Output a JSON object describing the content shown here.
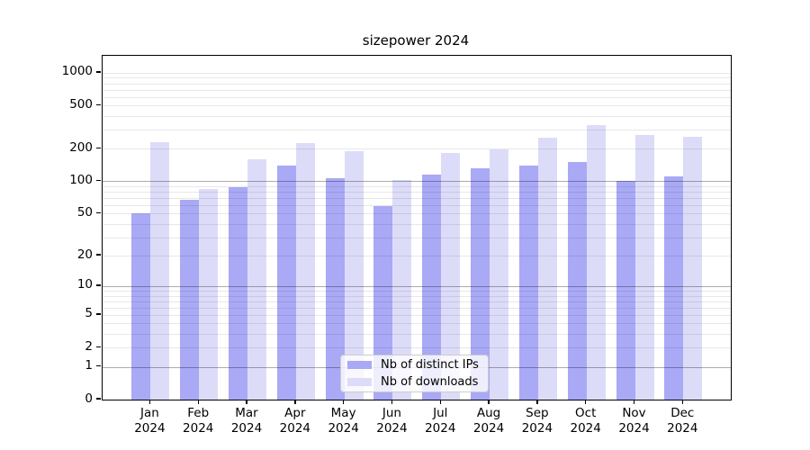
{
  "title": "sizepower 2024",
  "colors": {
    "distinct_ips": "#a9a9f6",
    "downloads": "#dcdcf9"
  },
  "legend": {
    "items": [
      {
        "label": "Nb of distinct IPs",
        "color_key": "distinct_ips"
      },
      {
        "label": "Nb of downloads",
        "color_key": "downloads"
      }
    ]
  },
  "chart_data": {
    "type": "bar",
    "title": "sizepower 2024",
    "categories": [
      "Jan",
      "Feb",
      "Mar",
      "Apr",
      "May",
      "Jun",
      "Jul",
      "Aug",
      "Sep",
      "Oct",
      "Nov",
      "Dec"
    ],
    "category_year": "2024",
    "series": [
      {
        "name": "Nb of distinct IPs",
        "color_key": "distinct_ips",
        "values": [
          50,
          67,
          88,
          140,
          106,
          59,
          116,
          132,
          140,
          152,
          101,
          111
        ]
      },
      {
        "name": "Nb of downloads",
        "color_key": "downloads",
        "values": [
          230,
          85,
          160,
          227,
          191,
          103,
          183,
          198,
          255,
          332,
          268,
          260
        ]
      }
    ],
    "yscale": "log10(value+1)",
    "yticks": [
      0,
      1,
      2,
      5,
      10,
      20,
      50,
      100,
      200,
      500,
      1000
    ],
    "ytick_major_grid": [
      1,
      10,
      100
    ],
    "ylim": [
      0,
      1435
    ],
    "grid": true,
    "legend_position": "lower center"
  }
}
